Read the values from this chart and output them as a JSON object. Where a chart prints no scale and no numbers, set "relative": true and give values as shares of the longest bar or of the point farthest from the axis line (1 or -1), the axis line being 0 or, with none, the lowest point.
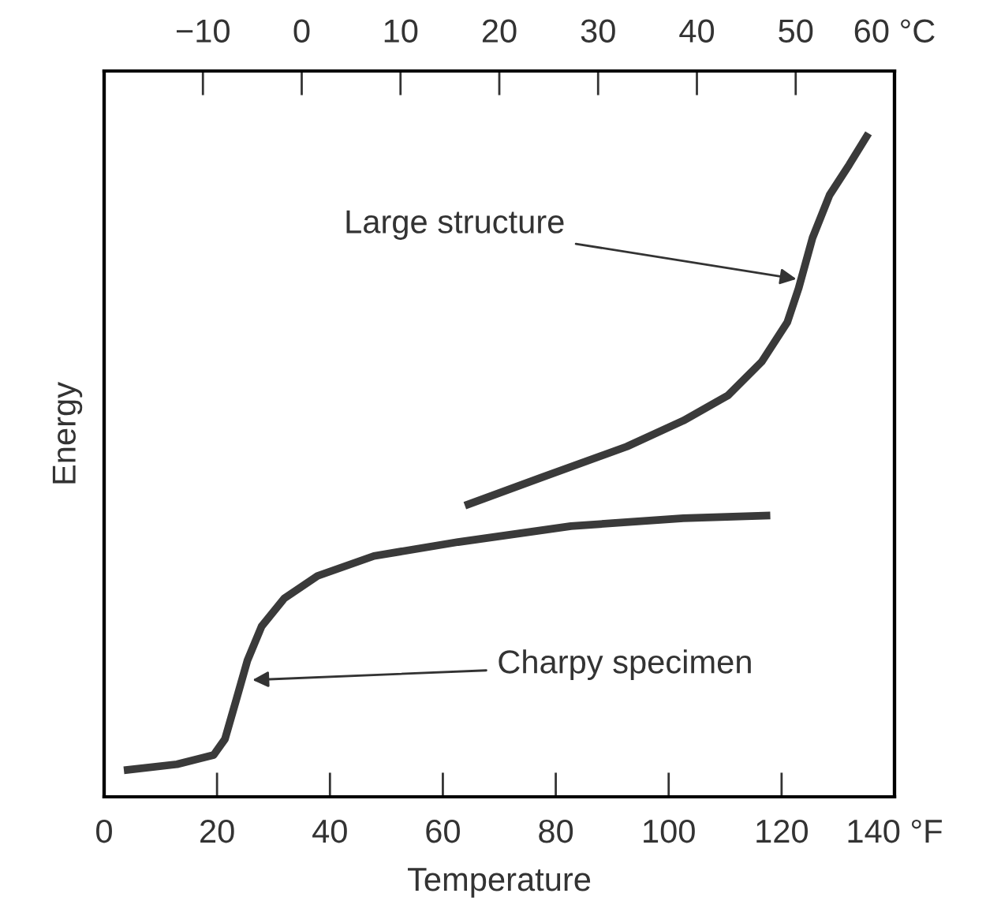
{
  "chart_data": {
    "type": "line",
    "relative": true,
    "xlabel": "Temperature",
    "ylabel": "Energy",
    "xlim": [
      0,
      140
    ],
    "xticks": [
      0,
      20,
      40,
      60,
      80,
      100,
      120,
      {
        "value": 140,
        "label": "140 °F"
      }
    ],
    "x2lim": [
      -20,
      60
    ],
    "x2ticks": [
      {
        "value": -10,
        "label": "−10"
      },
      0,
      10,
      20,
      30,
      40,
      50,
      {
        "value": 60,
        "label": "60 °C"
      }
    ],
    "grid": false,
    "legend": false,
    "marker": "none",
    "line_style": "solid",
    "series": [
      {
        "color": "#3a3a3a",
        "x": [
          3.5,
          12.9,
          19.4,
          21.4,
          23.4,
          25.4,
          27.9,
          31.9,
          37.8,
          47.8,
          62.7,
          82.7,
          102.6,
          118.0
        ],
        "values": [
          0.04,
          0.049,
          0.063,
          0.087,
          0.146,
          0.206,
          0.257,
          0.299,
          0.333,
          0.363,
          0.384,
          0.408,
          0.42,
          0.424
        ]
      },
      {
        "color": "#3a3a3a",
        "x": [
          63.9,
          77.7,
          92.6,
          102.6,
          110.5,
          116.5,
          121.0,
          123.0,
          125.5,
          128.5,
          132.0,
          135.4
        ],
        "values": [
          0.439,
          0.482,
          0.528,
          0.567,
          0.605,
          0.656,
          0.715,
          0.766,
          0.843,
          0.907,
          0.953,
          1.0
        ]
      }
    ],
    "annotations": [
      {
        "text": "Large structure",
        "x": 123.0,
        "y": 0.78
      },
      {
        "text": "Charpy specimen",
        "x": 25.9,
        "y": 0.176
      }
    ]
  }
}
